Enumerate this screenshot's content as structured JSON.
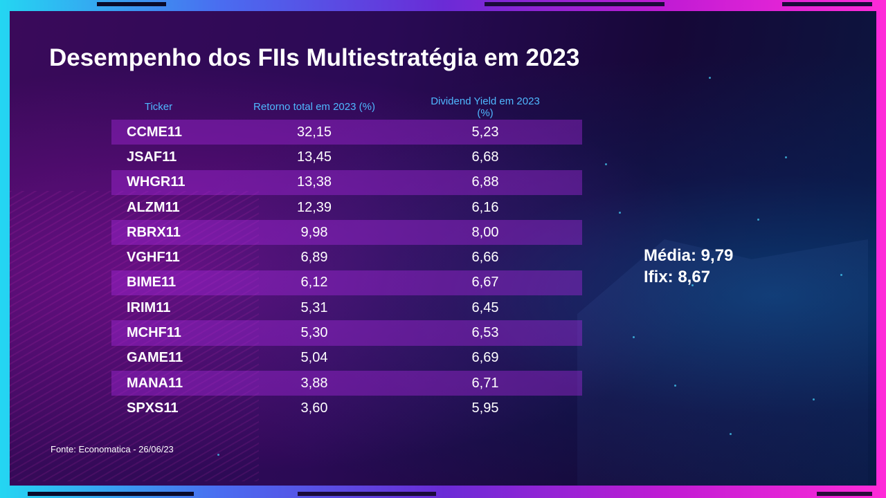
{
  "title": "Desempenho dos FIIs Multiestratégia em 2023",
  "chart_data": {
    "type": "table",
    "columns": [
      "Ticker",
      "Retorno total em 2023 (%)",
      "Dividend Yield em 2023 (%)"
    ],
    "rows": [
      [
        "CCME11",
        "32,15",
        "5,23"
      ],
      [
        "JSAF11",
        "13,45",
        "6,68"
      ],
      [
        "WHGR11",
        "13,38",
        "6,88"
      ],
      [
        "ALZM11",
        "12,39",
        "6,16"
      ],
      [
        "RBRX11",
        "9,98",
        "8,00"
      ],
      [
        "VGHF11",
        "6,89",
        "6,66"
      ],
      [
        "BIME11",
        "6,12",
        "6,67"
      ],
      [
        "IRIM11",
        "5,31",
        "6,45"
      ],
      [
        "MCHF11",
        "5,30",
        "6,53"
      ],
      [
        "GAME11",
        "5,04",
        "6,69"
      ],
      [
        "MANA11",
        "3,88",
        "6,71"
      ],
      [
        "SPXS11",
        "3,60",
        "5,95"
      ]
    ],
    "row_banding": "alternating",
    "header_color": "#4fb8ff",
    "band_color": "#a528dc"
  },
  "summary": {
    "media": "Média: 9,79",
    "ifix": "Ifix: 8,67"
  },
  "source": "Fonte: Economatica - 26/06/23",
  "colors": {
    "frame_left": "#24d6f2",
    "frame_right": "#ff2bd8",
    "panel": "#1a0840",
    "text": "#ffffff"
  }
}
